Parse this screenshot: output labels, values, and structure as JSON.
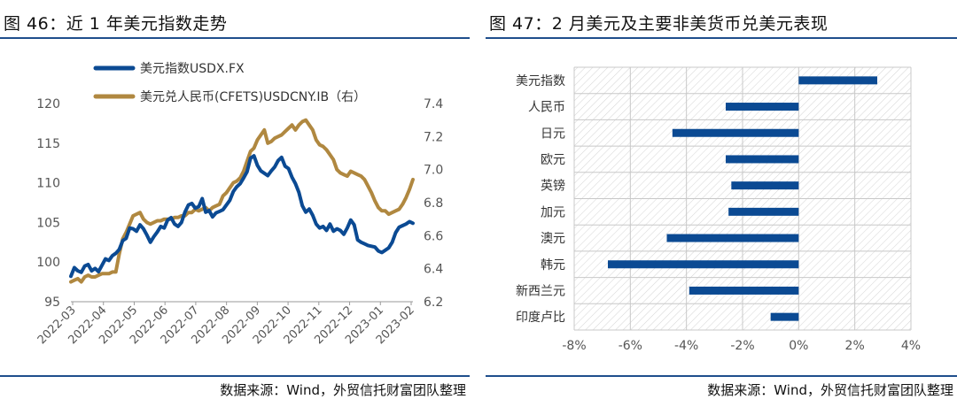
{
  "left": {
    "title": "图 46：近 1 年美元指数走势",
    "source": "数据来源：Wind，外贸信托财富团队整理"
  },
  "right": {
    "title": "图 47：2 月美元及主要非美货币兑美元表现",
    "source": "数据来源：Wind，外贸信托财富团队整理"
  },
  "colors": {
    "usdx": "#0b4a93",
    "usdcny": "#b08840",
    "bar": "#0b4a93",
    "rule": "#1f4e8c",
    "axis_text": "#555555"
  },
  "chart_data": [
    {
      "type": "line",
      "x_ticks": [
        "2022-03",
        "2022-04",
        "2022-05",
        "2022-06",
        "2022-07",
        "2022-08",
        "2022-09",
        "2022-10",
        "2022-11",
        "2022-12",
        "2023-01",
        "2023-02"
      ],
      "series": [
        {
          "name": "美元指数USDX.FX",
          "axis": "left",
          "values": [
            98.2,
            99.3,
            98.9,
            98.7,
            99.5,
            99.7,
            98.9,
            99.2,
            98.8,
            99.6,
            100.4,
            100.2,
            100.8,
            101.1,
            101.6,
            102.7,
            103.0,
            104.3,
            104.2,
            103.9,
            104.7,
            104.2,
            103.4,
            102.5,
            103.2,
            103.8,
            104.5,
            104.3,
            105.3,
            105.6,
            104.8,
            104.5,
            105.0,
            106.3,
            107.2,
            107.4,
            106.8,
            107.0,
            108.0,
            106.3,
            106.5,
            105.7,
            106.2,
            106.4,
            106.6,
            107.2,
            107.8,
            108.9,
            109.5,
            109.9,
            110.6,
            111.4,
            113.1,
            113.4,
            112.2,
            111.5,
            111.2,
            110.9,
            111.5,
            112.0,
            112.8,
            113.2,
            112.1,
            111.8,
            110.7,
            109.9,
            108.8,
            107.1,
            106.3,
            106.7,
            105.9,
            104.8,
            104.3,
            104.5,
            104.0,
            104.8,
            103.9,
            104.2,
            104.0,
            103.5,
            104.3,
            105.3,
            104.7,
            102.8,
            102.5,
            102.3,
            102.1,
            102.0,
            101.9,
            101.4,
            101.2,
            101.5,
            101.8,
            102.5,
            103.7,
            104.4,
            104.6,
            104.8,
            105.1,
            104.9
          ],
          "note": "series values are read approximately from the plotted line"
        },
        {
          "name": "美元兑人民币(CFETS)USDCNY.IB（右）",
          "axis": "right",
          "values": [
            6.32,
            6.33,
            6.34,
            6.32,
            6.35,
            6.36,
            6.35,
            6.35,
            6.36,
            6.37,
            6.37,
            6.37,
            6.38,
            6.38,
            6.49,
            6.58,
            6.62,
            6.67,
            6.72,
            6.73,
            6.74,
            6.7,
            6.68,
            6.67,
            6.68,
            6.69,
            6.69,
            6.7,
            6.7,
            6.7,
            6.71,
            6.71,
            6.72,
            6.72,
            6.74,
            6.74,
            6.76,
            6.75,
            6.76,
            6.77,
            6.75,
            6.77,
            6.78,
            6.79,
            6.84,
            6.86,
            6.89,
            6.92,
            6.93,
            6.95,
            6.99,
            7.05,
            7.11,
            7.13,
            7.18,
            7.21,
            7.24,
            7.16,
            7.17,
            7.19,
            7.2,
            7.21,
            7.23,
            7.25,
            7.27,
            7.24,
            7.27,
            7.29,
            7.3,
            7.27,
            7.24,
            7.18,
            7.15,
            7.14,
            7.12,
            7.09,
            7.06,
            7.0,
            6.98,
            6.97,
            6.96,
            6.99,
            6.98,
            6.97,
            6.96,
            6.94,
            6.9,
            6.86,
            6.81,
            6.77,
            6.75,
            6.75,
            6.73,
            6.74,
            6.75,
            6.76,
            6.79,
            6.83,
            6.88,
            6.94
          ]
        }
      ],
      "y_left": {
        "ticks": [
          95,
          100,
          105,
          110,
          115,
          120
        ],
        "lim": [
          95,
          120
        ]
      },
      "y_right": {
        "ticks": [
          "6.2",
          "6.4",
          "6.6",
          "6.8",
          "7.0",
          "7.2",
          "7.4"
        ],
        "lim": [
          6.2,
          7.4
        ]
      },
      "grid": false,
      "legend": "top-left"
    },
    {
      "type": "bar",
      "orientation": "horizontal",
      "categories": [
        "美元指数",
        "人民币",
        "日元",
        "欧元",
        "英镑",
        "加元",
        "澳元",
        "韩元",
        "新西兰元",
        "印度卢比"
      ],
      "values": [
        2.8,
        -2.6,
        -4.5,
        -2.6,
        -2.4,
        -2.5,
        -4.7,
        -6.8,
        -3.9,
        -1.0
      ],
      "x_ticks": [
        "-8%",
        "-6%",
        "-4%",
        "-2%",
        "0%",
        "2%",
        "4%"
      ],
      "xlim": [
        -8,
        4
      ],
      "grid": true
    }
  ]
}
